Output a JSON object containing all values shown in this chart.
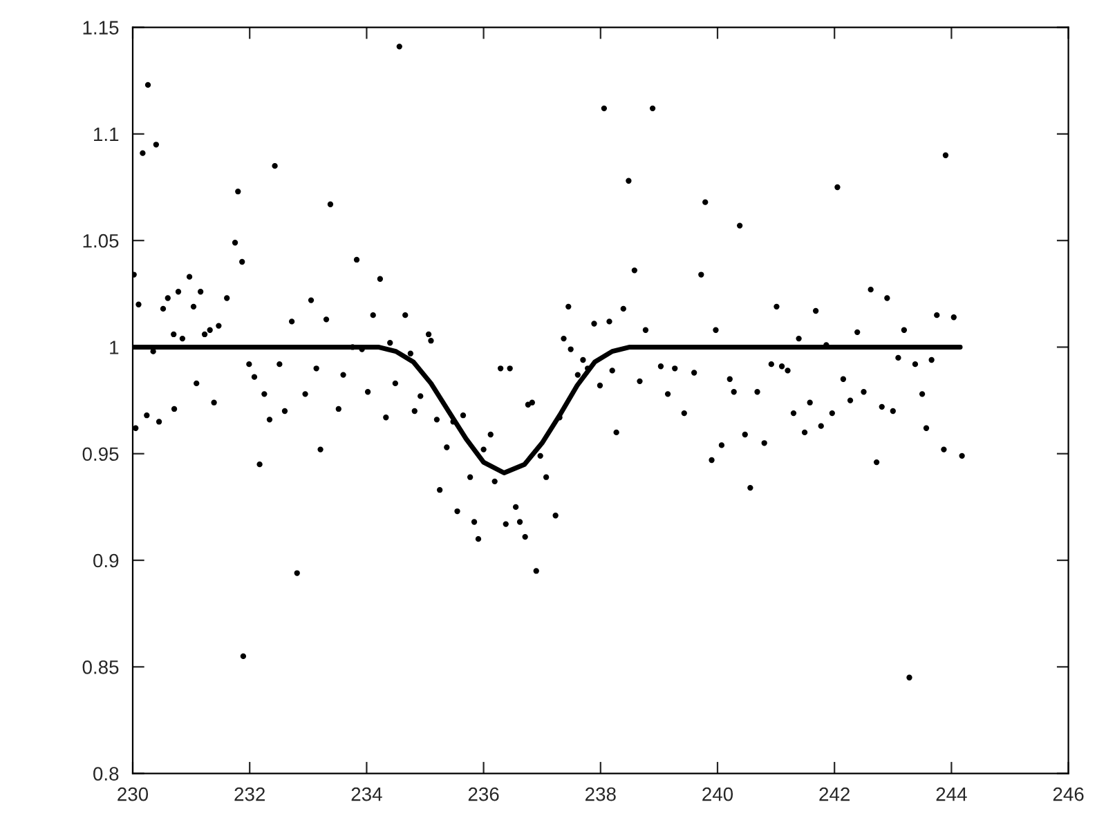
{
  "chart_data": {
    "type": "scatter",
    "xlim": [
      230,
      246
    ],
    "xticks": [
      230,
      232,
      234,
      236,
      238,
      240,
      242,
      244,
      246
    ],
    "ylim": [
      0.8,
      1.15
    ],
    "yticks": [
      0.8,
      0.85,
      0.9,
      0.95,
      1,
      1.05,
      1.1,
      1.15
    ],
    "grid": false,
    "legend": false,
    "series": [
      {
        "color": "#000000",
        "marker": "circle",
        "x": [
          230.02,
          230.05,
          230.1,
          230.17,
          230.26,
          230.24,
          230.35,
          230.4,
          230.45,
          230.52,
          230.6,
          230.7,
          230.71,
          230.78,
          230.85,
          230.97,
          231.04,
          231.09,
          231.16,
          231.23,
          231.32,
          231.39,
          231.47,
          231.61,
          231.75,
          231.8,
          231.87,
          231.89,
          231.99,
          232.08,
          232.17,
          232.25,
          232.34,
          232.43,
          232.51,
          232.6,
          232.72,
          232.81,
          232.95,
          233.05,
          233.14,
          233.21,
          233.31,
          233.38,
          233.52,
          233.6,
          233.76,
          233.83,
          233.92,
          234.02,
          234.11,
          234.23,
          234.33,
          234.4,
          234.49,
          234.56,
          234.66,
          234.75,
          234.82,
          234.92,
          235.06,
          235.1,
          235.2,
          235.25,
          235.37,
          235.48,
          235.55,
          235.65,
          235.77,
          235.84,
          235.91,
          236.0,
          236.12,
          236.19,
          236.29,
          236.38,
          236.45,
          236.55,
          236.62,
          236.71,
          236.76,
          236.83,
          236.9,
          236.97,
          237.07,
          237.23,
          237.3,
          237.37,
          237.45,
          237.49,
          237.61,
          237.7,
          237.78,
          237.89,
          237.99,
          238.06,
          238.15,
          238.2,
          238.27,
          238.39,
          238.48,
          238.58,
          238.67,
          238.77,
          238.89,
          239.03,
          239.15,
          239.27,
          239.43,
          239.6,
          239.72,
          239.79,
          239.9,
          239.97,
          240.07,
          240.21,
          240.28,
          240.38,
          240.47,
          240.56,
          240.68,
          240.8,
          240.92,
          241.01,
          241.1,
          241.2,
          241.3,
          241.39,
          241.49,
          241.58,
          241.68,
          241.77,
          241.86,
          241.96,
          242.05,
          242.15,
          242.27,
          242.39,
          242.5,
          242.62,
          242.72,
          242.81,
          242.9,
          243.0,
          243.09,
          243.19,
          243.28,
          243.38,
          243.5,
          243.57,
          243.66,
          243.75,
          243.87,
          243.9,
          244.04,
          244.18
        ],
        "values": [
          1.034,
          0.962,
          1.02,
          1.091,
          1.123,
          0.968,
          0.998,
          1.095,
          0.965,
          1.018,
          1.023,
          1.006,
          0.971,
          1.026,
          1.004,
          1.033,
          1.019,
          0.983,
          1.026,
          1.006,
          1.008,
          0.974,
          1.01,
          1.023,
          1.049,
          1.073,
          1.04,
          0.855,
          0.992,
          0.986,
          0.945,
          0.978,
          0.966,
          1.085,
          0.992,
          0.97,
          1.012,
          0.894,
          0.978,
          1.022,
          0.99,
          0.952,
          1.013,
          1.067,
          0.971,
          0.987,
          1.0,
          1.041,
          0.999,
          0.979,
          1.015,
          1.032,
          0.967,
          1.002,
          0.983,
          1.141,
          1.015,
          0.997,
          0.97,
          0.977,
          1.006,
          1.003,
          0.966,
          0.933,
          0.953,
          0.965,
          0.923,
          0.968,
          0.939,
          0.918,
          0.91,
          0.952,
          0.959,
          0.937,
          0.99,
          0.917,
          0.99,
          0.925,
          0.918,
          0.911,
          0.973,
          0.974,
          0.895,
          0.949,
          0.939,
          0.921,
          0.967,
          1.004,
          1.019,
          0.999,
          0.987,
          0.994,
          0.99,
          1.011,
          0.982,
          1.112,
          1.012,
          0.989,
          0.96,
          1.018,
          1.078,
          1.036,
          0.984,
          1.008,
          1.112,
          0.991,
          0.978,
          0.99,
          0.969,
          0.988,
          1.034,
          1.068,
          0.947,
          1.008,
          0.954,
          0.985,
          0.979,
          1.057,
          0.959,
          0.934,
          0.979,
          0.955,
          0.992,
          1.019,
          0.991,
          0.989,
          0.969,
          1.004,
          0.96,
          0.974,
          1.017,
          0.963,
          1.001,
          0.969,
          1.075,
          0.985,
          0.975,
          1.007,
          0.979,
          1.027,
          0.946,
          0.972,
          1.023,
          0.97,
          0.995,
          1.008,
          0.845,
          0.992,
          0.978,
          0.962,
          0.994,
          1.015,
          0.952,
          1.09,
          1.014,
          0.949
        ]
      },
      {
        "type": "line",
        "color": "#000000",
        "marker": "none",
        "line_style": "solid",
        "x": [
          230,
          234.2,
          234.5,
          234.8,
          235.1,
          235.4,
          235.7,
          236.0,
          236.35,
          236.7,
          237.0,
          237.3,
          237.6,
          237.9,
          238.2,
          238.5,
          244.15
        ],
        "values": [
          1.0,
          1.0,
          0.998,
          0.993,
          0.983,
          0.97,
          0.957,
          0.946,
          0.941,
          0.945,
          0.955,
          0.968,
          0.982,
          0.993,
          0.998,
          1.0,
          1.0
        ]
      }
    ]
  }
}
